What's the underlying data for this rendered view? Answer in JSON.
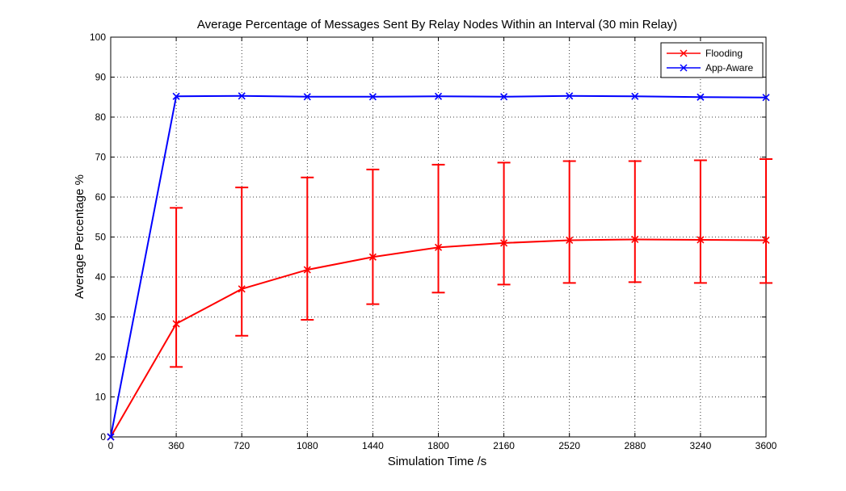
{
  "chart_data": {
    "type": "line",
    "title": "Average Percentage of Messages Sent By Relay Nodes Within an Interval (30 min Relay)",
    "xlabel": "Simulation Time /s",
    "ylabel": "Average Percentage %",
    "xlim": [
      0,
      3600
    ],
    "ylim": [
      0,
      100
    ],
    "xticks": [
      0,
      360,
      720,
      1080,
      1440,
      1800,
      2160,
      2520,
      2880,
      3240,
      3600
    ],
    "yticks": [
      0,
      10,
      20,
      30,
      40,
      50,
      60,
      70,
      80,
      90,
      100
    ],
    "grid": true,
    "legend_position": "top-right",
    "x": [
      0,
      360,
      720,
      1080,
      1440,
      1800,
      2160,
      2520,
      2880,
      3240,
      3600
    ],
    "series": [
      {
        "name": "Flooding",
        "color": "#ff0000",
        "marker": "x",
        "values": [
          0,
          28.3,
          37.0,
          41.8,
          45.0,
          47.4,
          48.5,
          49.2,
          49.4,
          49.3,
          49.2
        ],
        "error_lower": [
          null,
          17.5,
          25.3,
          29.3,
          33.2,
          36.1,
          38.1,
          38.5,
          38.7,
          38.5,
          38.5
        ],
        "error_upper": [
          null,
          57.3,
          62.4,
          64.9,
          66.9,
          68.1,
          68.6,
          69.0,
          69.0,
          69.2,
          69.5
        ]
      },
      {
        "name": "App-Aware",
        "color": "#0000ff",
        "marker": "x",
        "values": [
          0,
          85.2,
          85.3,
          85.1,
          85.1,
          85.2,
          85.1,
          85.3,
          85.2,
          85.0,
          84.9
        ]
      }
    ]
  }
}
